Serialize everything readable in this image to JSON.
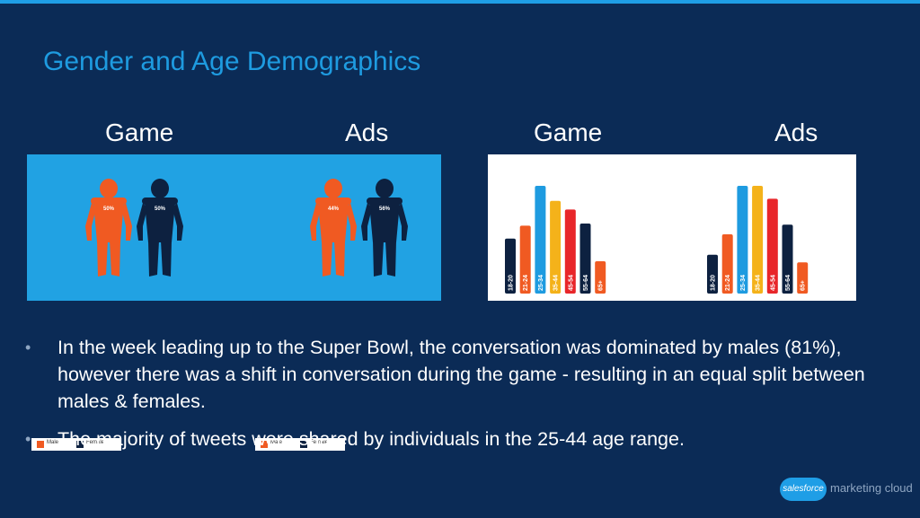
{
  "slide": {
    "title": "Gender and Age Demographics",
    "labels": [
      "Game",
      "Ads",
      "Game",
      "Ads"
    ]
  },
  "chart_data": [
    {
      "type": "bar",
      "title": "Gender - Game",
      "categories": [
        "Male",
        "Female"
      ],
      "values": [
        50,
        50
      ],
      "value_labels": [
        "50%",
        "50%"
      ],
      "legend": [
        "Male",
        "Female"
      ]
    },
    {
      "type": "bar",
      "title": "Gender - Ads",
      "categories": [
        "Male",
        "Female"
      ],
      "values": [
        44,
        56
      ],
      "value_labels": [
        "44%",
        "56%"
      ],
      "legend": [
        "Male",
        "Female"
      ]
    },
    {
      "type": "bar",
      "title": "Age - Game",
      "categories": [
        "18-20",
        "21-24",
        "25-34",
        "35-44",
        "45-54",
        "55-64",
        "65+"
      ],
      "values": [
        51,
        63,
        100,
        86,
        78,
        65,
        30
      ]
    },
    {
      "type": "bar",
      "title": "Age - Ads",
      "categories": [
        "18-20",
        "21-24",
        "25-34",
        "35-44",
        "45-54",
        "55-64",
        "65+"
      ],
      "values": [
        36,
        55,
        100,
        100,
        88,
        64,
        29
      ]
    }
  ],
  "colors": {
    "male": "#f05a22",
    "female": "#0d2140",
    "age_bars": [
      "#0d2140",
      "#f05a22",
      "#1e9be0",
      "#f4b21a",
      "#e8262a",
      "#0d2140",
      "#f05a22"
    ]
  },
  "bullets": [
    "In the week leading up to the Super Bowl, the conversation was dominated by males (81%), however there was a shift in conversation during the game - resulting in an equal split between males & females.",
    "The majority of tweets were shared by individuals in the 25-44 age range."
  ],
  "brand": {
    "logo": "salesforce",
    "text": "marketing cloud"
  }
}
